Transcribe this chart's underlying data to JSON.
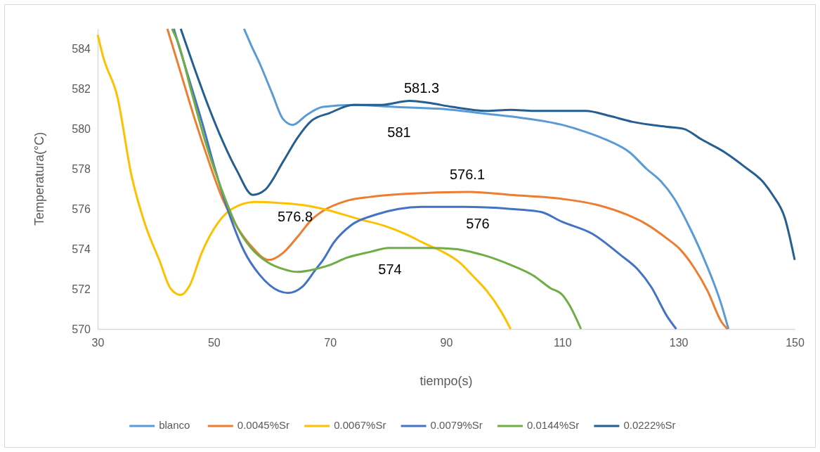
{
  "chart_data": {
    "type": "line",
    "xlabel": "tiempo(s)",
    "ylabel": "Temperatura(°C)",
    "xlim": [
      30,
      150
    ],
    "ylim": [
      570,
      585
    ],
    "xticks": [
      30,
      50,
      70,
      90,
      110,
      130,
      150
    ],
    "yticks": [
      570,
      572,
      574,
      576,
      578,
      580,
      582,
      584
    ],
    "grid": false,
    "legend": "bottom",
    "marker": "none",
    "line_style": "solid",
    "series": [
      {
        "name": "blanco",
        "color": "#5b9bd5",
        "x": [
          55.2,
          56.4,
          58,
          60,
          61.9,
          63.6,
          66,
          68.8,
          74,
          80.9,
          89,
          97,
          103,
          110,
          114,
          117.2,
          121.7,
          124.5,
          126.9,
          129.3,
          131.7,
          134.1,
          137.4,
          138.6
        ],
        "values": [
          585,
          584.2,
          583.2,
          581.8,
          580.5,
          580.2,
          580.7,
          581.1,
          581.2,
          581.1,
          581,
          580.75,
          580.55,
          580.2,
          579.85,
          579.5,
          578.8,
          578,
          577.4,
          576.5,
          575.2,
          573.7,
          571.2,
          570
        ]
      },
      {
        "name": "0.0045%Sr",
        "color": "#ed7d31",
        "x": [
          42,
          44.3,
          46.7,
          49.1,
          51.5,
          54,
          56.4,
          59.5,
          61.9,
          64.4,
          66.8,
          68.8,
          72.8,
          76.9,
          83,
          93.9,
          101.1,
          110,
          116,
          121.2,
          124.1,
          128.1,
          130.2,
          132.6,
          135,
          137.4,
          138.4
        ],
        "values": [
          585,
          582.8,
          580.5,
          578.4,
          576.5,
          575.1,
          574.15,
          573.45,
          573.8,
          574.6,
          575.45,
          575.9,
          576.4,
          576.6,
          576.75,
          576.85,
          576.7,
          576.5,
          576.2,
          575.7,
          575.3,
          574.5,
          574,
          573.1,
          571.9,
          570.35,
          570
        ]
      },
      {
        "name": "0.0067%Sr",
        "color": "#ffc000",
        "x": [
          30,
          31,
          33.4,
          35.8,
          38.2,
          40.6,
          42.6,
          44.3,
          45.8,
          47.9,
          50.7,
          53.1,
          57.1,
          61.2,
          65.2,
          68.8,
          74.9,
          79.4,
          83,
          86.1,
          89.8,
          92.2,
          94.6,
          97,
          99.4,
          101.1
        ],
        "values": [
          584.7,
          583.55,
          581.6,
          577.7,
          575.2,
          573.45,
          572,
          571.7,
          572.15,
          573.8,
          575.3,
          576,
          576.35,
          576.3,
          576.2,
          576,
          575.5,
          575.15,
          574.75,
          574.3,
          573.8,
          573.35,
          572.65,
          571.9,
          570.9,
          570
        ]
      },
      {
        "name": "0.0079%Sr",
        "color": "#4472c4",
        "x": [
          43.1,
          45.5,
          47.9,
          50.3,
          52.7,
          55.2,
          57.9,
          61.2,
          62.8,
          65.2,
          67.6,
          68.8,
          70.6,
          73.7,
          77.7,
          81.8,
          85.8,
          93,
          101.1,
          106.3,
          110,
          115.2,
          120,
          122.9,
          125.3,
          128.1,
          129.6
        ],
        "values": [
          585,
          582.7,
          580.4,
          577.9,
          575.7,
          573.9,
          572.7,
          571.9,
          571.8,
          572.1,
          573,
          573.45,
          574.3,
          575.2,
          575.7,
          576,
          576.1,
          576.1,
          576,
          575.85,
          575.35,
          574.75,
          573.7,
          573,
          572.1,
          570.6,
          570
        ]
      },
      {
        "name": "0.0144%Sr",
        "color": "#70ad47",
        "x": [
          42.8,
          43.8,
          46.2,
          48.6,
          51.5,
          54,
          56.4,
          59.2,
          61.9,
          64.4,
          67.6,
          70,
          72.8,
          76.9,
          80.1,
          87,
          91.5,
          96.3,
          101.1,
          105.1,
          107.9,
          110,
          111.2,
          113.2
        ],
        "values": [
          585,
          584.35,
          581.8,
          579.3,
          576.85,
          575.1,
          574.05,
          573.35,
          573,
          572.85,
          573,
          573.2,
          573.55,
          573.85,
          574.05,
          574.05,
          574,
          573.7,
          573.2,
          572.65,
          572.05,
          571.7,
          571.2,
          570
        ]
      },
      {
        "name": "0.0222%Sr",
        "color": "#255e91",
        "x": [
          44.3,
          46.7,
          49.1,
          51.5,
          54,
          56.7,
          58.8,
          62,
          64.4,
          66.8,
          70,
          74,
          78.9,
          83.7,
          87,
          91,
          97,
          101.1,
          105.1,
          110,
          114,
          118.1,
          122.1,
          128.1,
          130.9,
          133.8,
          138.1,
          141.4,
          144.7,
          146.2,
          148.3,
          150
        ],
        "values": [
          585,
          583,
          581.1,
          579.4,
          577.9,
          576.7,
          576.95,
          578.4,
          579.55,
          580.4,
          580.8,
          581.2,
          581.2,
          581.4,
          581.3,
          581.1,
          580.9,
          580.95,
          580.9,
          580.9,
          580.9,
          580.65,
          580.35,
          580.1,
          580,
          579.5,
          578.8,
          578.1,
          577.3,
          576.7,
          575.55,
          573.45
        ]
      }
    ],
    "annotations": [
      "581.3",
      "581",
      "576.1",
      "576.8",
      "576",
      "574"
    ]
  }
}
